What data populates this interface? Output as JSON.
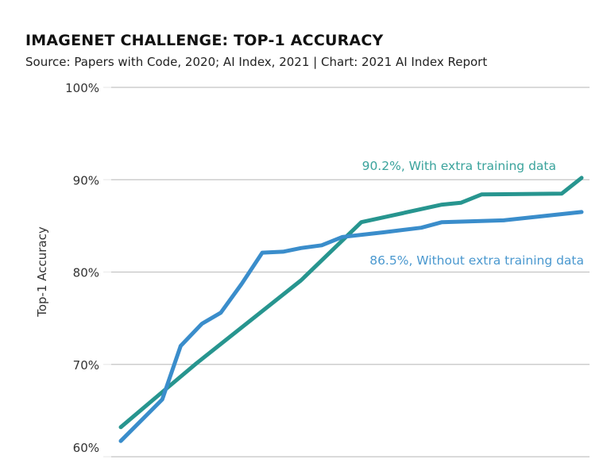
{
  "title": "IMAGENET CHALLENGE: TOP-1 ACCURACY",
  "subtitle": "Source: Papers with Code, 2020; AI Index, 2021 | Chart: 2021 AI Index Report",
  "chart_data": {
    "type": "line",
    "title": "IMAGENET CHALLENGE: TOP-1 ACCURACY",
    "xlabel": "",
    "ylabel": "Top-1 Accuracy",
    "ylim": [
      60,
      100
    ],
    "xlim": [
      0,
      100
    ],
    "yticks": [
      100,
      90,
      80,
      70,
      60
    ],
    "ytick_labels": [
      "100%",
      "90%",
      "80%",
      "70%",
      "60%"
    ],
    "grid": true,
    "series": [
      {
        "name": "With extra training data",
        "color": "#27958f",
        "label_color": "#3aa39c",
        "end_label": "90.2%, With extra training data",
        "x": [
          0,
          9,
          16.4,
          39.1,
          52.2,
          69.7,
          73.8,
          78.3,
          95.7,
          100
        ],
        "y": [
          63.2,
          67.0,
          70.1,
          79.1,
          85.4,
          87.3,
          87.5,
          88.4,
          88.5,
          90.2
        ]
      },
      {
        "name": "Without extra training data",
        "color": "#3a8dcb",
        "label_color": "#4a98cf",
        "end_label": "86.5%, Without extra training data",
        "x": [
          0,
          9,
          13,
          17.6,
          21.7,
          26.2,
          30.7,
          35.2,
          39.1,
          43.6,
          48.1,
          57,
          65.2,
          69.7,
          83.1,
          100
        ],
        "y": [
          61.7,
          66.2,
          72.0,
          74.4,
          75.6,
          78.7,
          82.1,
          82.2,
          82.6,
          82.9,
          83.8,
          84.3,
          84.8,
          85.4,
          85.6,
          86.5
        ]
      }
    ]
  }
}
